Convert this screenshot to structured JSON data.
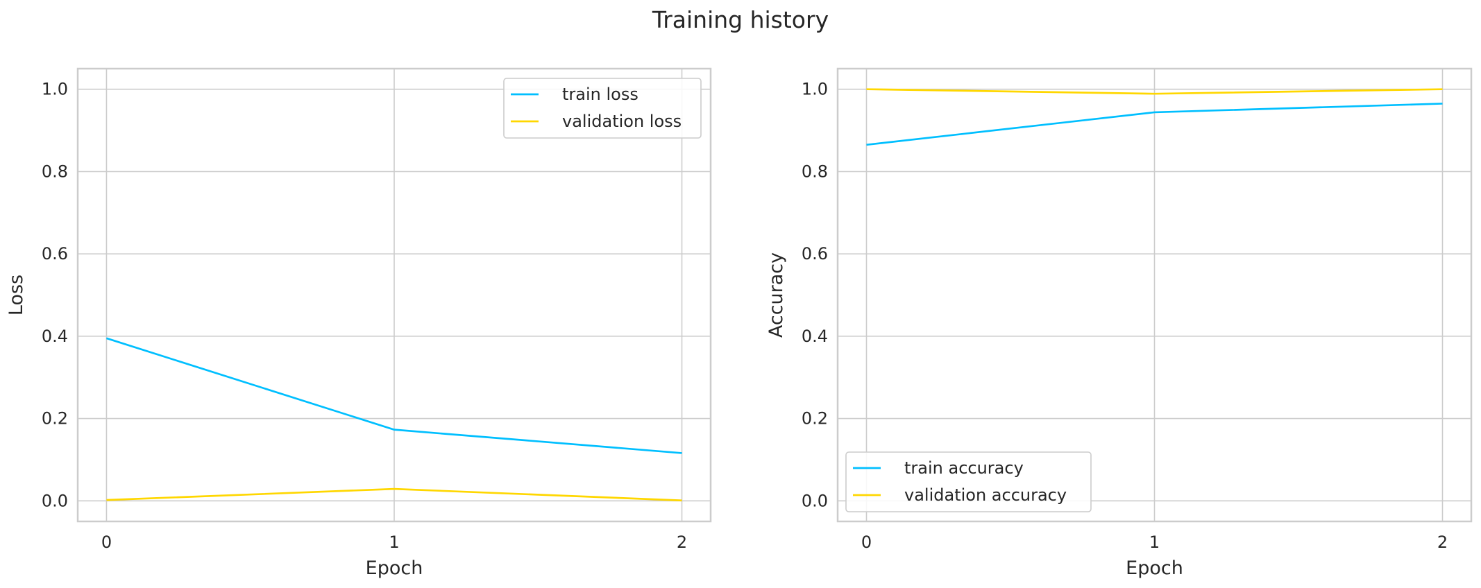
{
  "figure_title": "Training history",
  "chart_data": [
    {
      "type": "line",
      "xlabel": "Epoch",
      "ylabel": "Loss",
      "x": [
        0,
        1,
        2
      ],
      "xticks": [
        "0",
        "1",
        "2"
      ],
      "yticks": [
        "0.0",
        "0.2",
        "0.4",
        "0.6",
        "0.8",
        "1.0"
      ],
      "xlim": [
        -0.1,
        2.1
      ],
      "ylim": [
        -0.05,
        1.05
      ],
      "grid": true,
      "legend": "top-right",
      "series": [
        {
          "name": "train loss",
          "color": "#00BFFF",
          "values": [
            0.395,
            0.173,
            0.116
          ]
        },
        {
          "name": "validation loss",
          "color": "#FFD700",
          "values": [
            0.002,
            0.029,
            0.001
          ]
        }
      ]
    },
    {
      "type": "line",
      "xlabel": "Epoch",
      "ylabel": "Accuracy",
      "x": [
        0,
        1,
        2
      ],
      "xticks": [
        "0",
        "1",
        "2"
      ],
      "yticks": [
        "0.0",
        "0.2",
        "0.4",
        "0.6",
        "0.8",
        "1.0"
      ],
      "xlim": [
        -0.1,
        2.1
      ],
      "ylim": [
        -0.05,
        1.05
      ],
      "grid": true,
      "legend": "bottom-left",
      "series": [
        {
          "name": "train accuracy",
          "color": "#00BFFF",
          "values": [
            0.865,
            0.944,
            0.965
          ]
        },
        {
          "name": "validation accuracy",
          "color": "#FFD700",
          "values": [
            1.0,
            0.989,
            1.0
          ]
        }
      ]
    }
  ]
}
